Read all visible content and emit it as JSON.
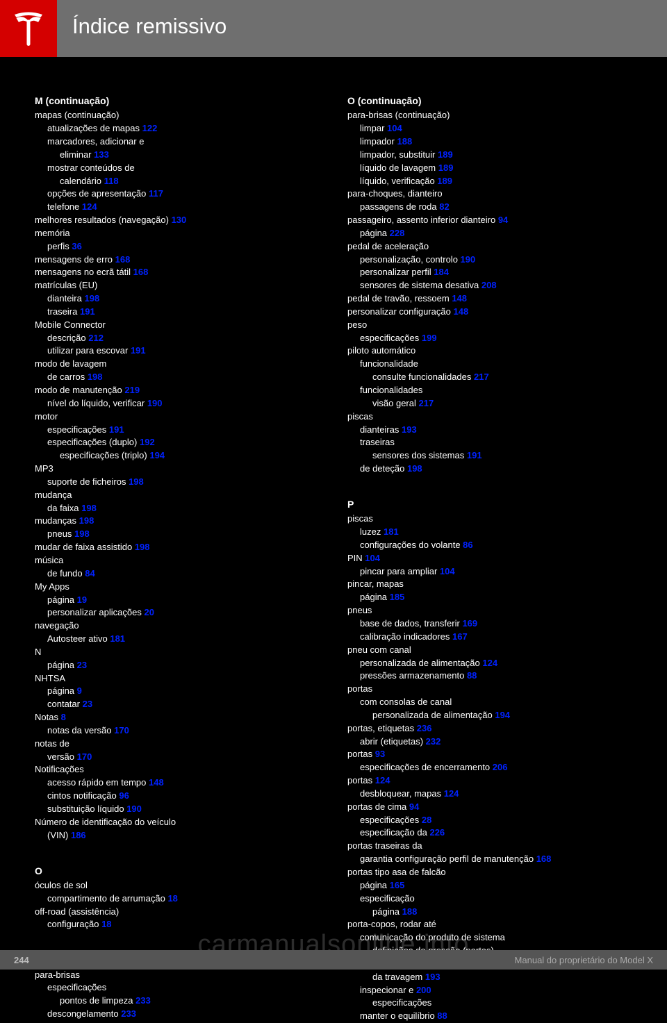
{
  "header": {
    "title": "Índice remissivo"
  },
  "footer": {
    "page": "244",
    "note": "Manual do proprietário do Model X"
  },
  "watermark": "carmanualsonline.info",
  "left": [
    {
      "cls": "sec-letter",
      "t": "M (continuação)"
    },
    {
      "cls": "entry",
      "t": "mapas (continuação)"
    },
    {
      "cls": "sub",
      "t": "atualizações de mapas",
      "p": "122"
    },
    {
      "cls": "sub",
      "t": "marcadores, adicionar e"
    },
    {
      "cls": "sub2",
      "t": "eliminar",
      "p": "133"
    },
    {
      "cls": "sub",
      "t": "mostrar conteúdos de"
    },
    {
      "cls": "sub2",
      "t": "calendário",
      "p": "118"
    },
    {
      "cls": "sub",
      "t": "opções de apresentação",
      "p": "117"
    },
    {
      "cls": "sub",
      "t": "telefone",
      "p": "124"
    },
    {
      "cls": "entry",
      "t": "melhores resultados (navegação)",
      "p": "130"
    },
    {
      "cls": "entry",
      "t": "memória"
    },
    {
      "cls": "sub",
      "t": "perfis",
      "p": "36"
    },
    {
      "cls": "entry",
      "t": "mensagens de erro",
      "p": "168"
    },
    {
      "cls": "entry",
      "t": "mensagens no ecrã tátil",
      "p": "168"
    },
    {
      "cls": "entry",
      "t": "matrículas (EU)"
    },
    {
      "cls": "sub",
      "t": "dianteira",
      "p": "198"
    },
    {
      "cls": "sub",
      "t": "traseira",
      "p": "191"
    },
    {
      "cls": "entry",
      "t": "Mobile Connector"
    },
    {
      "cls": "sub",
      "t": "descrição",
      "p": "212"
    },
    {
      "cls": "sub",
      "t": "utilizar para escovar",
      "p": "191"
    },
    {
      "cls": "entry",
      "t": "modo de lavagem"
    },
    {
      "cls": "sub",
      "t": "de carros",
      "p": "198"
    },
    {
      "cls": "entry",
      "t": "modo de manutenção",
      "p": "219"
    },
    {
      "cls": "sub",
      "t": "nível do líquido, verificar",
      "p": "190"
    },
    {
      "cls": "entry",
      "t": "motor"
    },
    {
      "cls": "sub",
      "t": "especificações",
      "p": "191"
    },
    {
      "cls": "sub",
      "t": "especificações (duplo)",
      "p": "192"
    },
    {
      "cls": "sub2",
      "t": "especificações (triplo)",
      "p": "194"
    },
    {
      "cls": "entry",
      "t": "MP3"
    },
    {
      "cls": "sub",
      "t": "suporte de ficheiros",
      "p": "198"
    },
    {
      "cls": "entry",
      "t": "mudança"
    },
    {
      "cls": "sub",
      "t": "da faixa",
      "p": "198"
    },
    {
      "cls": "entry",
      "t": "mudanças",
      "p": "198"
    },
    {
      "cls": "sub",
      "t": "pneus",
      "p": "198"
    },
    {
      "cls": "entry",
      "t": "mudar de faixa assistido",
      "p": "198"
    },
    {
      "cls": "entry",
      "t": "música"
    },
    {
      "cls": "sub",
      "t": "de fundo",
      "p": "84"
    },
    {
      "cls": "entry",
      "t": "My Apps"
    },
    {
      "cls": "sub",
      "t": "página",
      "p": "19"
    },
    {
      "cls": "sub",
      "t": "personalizar aplicações",
      "p": "20"
    },
    {
      "cls": "entry",
      "t": "navegação"
    },
    {
      "cls": "sub",
      "t": "Autosteer ativo",
      "p": "181"
    },
    {
      "cls": "entry",
      "t": "N"
    },
    {
      "cls": "sub",
      "t": "página",
      "p": "23"
    },
    {
      "cls": "entry",
      "t": "NHTSA"
    },
    {
      "cls": "sub",
      "t": "página",
      "p": "9"
    },
    {
      "cls": "sub",
      "t": "contatar",
      "p": "23"
    },
    {
      "cls": "entry",
      "t": "Notas",
      "p": "8"
    },
    {
      "cls": "sub",
      "t": "notas da versão",
      "p": "170"
    },
    {
      "cls": "entry",
      "t": "notas de"
    },
    {
      "cls": "sub",
      "t": "versão",
      "p": "170"
    },
    {
      "cls": "entry",
      "t": "Notificações"
    },
    {
      "cls": "sub",
      "t": "acesso rápido em tempo",
      "p": "148"
    },
    {
      "cls": "sub",
      "t": "cintos notificação",
      "p": "96"
    },
    {
      "cls": "sub",
      "t": "substituição líquido",
      "p": "190"
    },
    {
      "cls": "entry",
      "t": "Número de identificação do veículo"
    },
    {
      "cls": "sub",
      "t": "(VIN)",
      "p": "186"
    },
    {
      "cls": "blank",
      "t": ""
    },
    {
      "cls": "sec-letter",
      "t": "O"
    },
    {
      "cls": "entry",
      "t": "óculos de sol"
    },
    {
      "cls": "sub",
      "t": "compartimento de arrumação",
      "p": "18"
    },
    {
      "cls": "entry",
      "t": "off-road (assistência)"
    },
    {
      "cls": "sub",
      "t": "configuração",
      "p": "18"
    },
    {
      "cls": "blank",
      "t": ""
    },
    {
      "cls": "sec-letter",
      "t": "P"
    },
    {
      "cls": "entry",
      "t": "para-brisas"
    },
    {
      "cls": "sub",
      "t": "especificações"
    },
    {
      "cls": "sub2",
      "t": "pontos de limpeza",
      "p": "233"
    },
    {
      "cls": "sub",
      "t": "descongelamento",
      "p": "233"
    }
  ],
  "right": [
    {
      "cls": "sec-letter",
      "t": "O (continuação)"
    },
    {
      "cls": "entry",
      "t": "para-brisas (continuação)"
    },
    {
      "cls": "sub",
      "t": "limpar",
      "p": "104"
    },
    {
      "cls": "sub",
      "t": "limpador",
      "p": "188"
    },
    {
      "cls": "sub",
      "t": "limpador, substituir",
      "p": "189"
    },
    {
      "cls": "sub",
      "t": "líquido de lavagem",
      "p": "189"
    },
    {
      "cls": "sub",
      "t": "líquido, verificação",
      "p": "189"
    },
    {
      "cls": "entry",
      "t": "para-choques, dianteiro"
    },
    {
      "cls": "sub",
      "t": "passagens de roda",
      "p": "82"
    },
    {
      "cls": "entry",
      "t": "passageiro, assento inferior dianteiro",
      "p": "94"
    },
    {
      "cls": "sub",
      "t": "página",
      "p": "228"
    },
    {
      "cls": "entry",
      "t": "pedal de aceleração"
    },
    {
      "cls": "sub",
      "t": "personalização, controlo",
      "p": "190"
    },
    {
      "cls": "sub",
      "t": "personalizar perfil",
      "p": "184"
    },
    {
      "cls": "sub",
      "t": "sensores de sistema desativa",
      "p": "208"
    },
    {
      "cls": "entry",
      "t": "pedal de travão, ressoem",
      "p": "148"
    },
    {
      "cls": "entry",
      "t": "personalizar configuração",
      "p": "148"
    },
    {
      "cls": "entry",
      "t": "peso"
    },
    {
      "cls": "sub",
      "t": "especificações",
      "p": "199"
    },
    {
      "cls": "entry",
      "t": "piloto automático"
    },
    {
      "cls": "sub",
      "t": "funcionalidade"
    },
    {
      "cls": "sub2",
      "t": "consulte funcionalidades",
      "p": "217"
    },
    {
      "cls": "sub",
      "t": "funcionalidades"
    },
    {
      "cls": "sub2",
      "t": "visão geral",
      "p": "217"
    },
    {
      "cls": "entry",
      "t": "piscas"
    },
    {
      "cls": "sub",
      "t": "dianteiras",
      "p": "193"
    },
    {
      "cls": "sub",
      "t": "traseiras"
    },
    {
      "cls": "sub2",
      "t": "sensores dos sistemas",
      "p": "191"
    },
    {
      "cls": "sub",
      "t": "de deteção",
      "p": "198"
    },
    {
      "cls": "blank",
      "t": ""
    },
    {
      "cls": "sec-letter",
      "t": "P"
    },
    {
      "cls": "entry",
      "t": "piscas"
    },
    {
      "cls": "sub",
      "t": "luzez",
      "p": "181"
    },
    {
      "cls": "sub",
      "t": "configurações do volante",
      "p": "86"
    },
    {
      "cls": "entry",
      "t": "PIN",
      "p": "104"
    },
    {
      "cls": "sub",
      "t": "pincar para ampliar",
      "p": "104"
    },
    {
      "cls": "entry",
      "t": "pincar, mapas"
    },
    {
      "cls": "sub",
      "t": "página",
      "p": "185"
    },
    {
      "cls": "entry",
      "t": "pneus"
    },
    {
      "cls": "sub",
      "t": "base de dados, transferir",
      "p": "169"
    },
    {
      "cls": "sub",
      "t": "calibração indicadores",
      "p": "167"
    },
    {
      "cls": "entry",
      "t": "pneu com canal"
    },
    {
      "cls": "sub",
      "t": "personalizada de alimentação",
      "p": "124"
    },
    {
      "cls": "sub",
      "t": "pressões armazenamento",
      "p": "88"
    },
    {
      "cls": "entry",
      "t": "portas"
    },
    {
      "cls": "sub",
      "t": "com consolas de canal"
    },
    {
      "cls": "sub2",
      "t": "personalizada de alimentação",
      "p": "194"
    },
    {
      "cls": "entry",
      "t": "portas, etiquetas",
      "p": "236"
    },
    {
      "cls": "sub",
      "t": "abrir (etiquetas)",
      "p": "232"
    },
    {
      "cls": "entry",
      "t": "portas",
      "p": "93"
    },
    {
      "cls": "sub",
      "t": "especificações de encerramento",
      "p": "206"
    },
    {
      "cls": "entry",
      "t": "portas",
      "p": "124"
    },
    {
      "cls": "sub",
      "t": "desbloquear, mapas",
      "p": "124"
    },
    {
      "cls": "entry",
      "t": "portas de cima",
      "p": "94"
    },
    {
      "cls": "sub",
      "t": "especificações",
      "p": "28"
    },
    {
      "cls": "sub",
      "t": "especificação da",
      "p": "226"
    },
    {
      "cls": "entry",
      "t": "portas traseiras da"
    },
    {
      "cls": "sub",
      "t": "garantia configuração perfil de manutenção",
      "p": "168"
    },
    {
      "cls": "entry",
      "t": "portas tipo asa de falcão"
    },
    {
      "cls": "sub",
      "t": "página",
      "p": "165"
    },
    {
      "cls": "sub",
      "t": "especificação"
    },
    {
      "cls": "sub2",
      "t": "página",
      "p": "188"
    },
    {
      "cls": "entry",
      "t": "porta-copos, rodar até"
    },
    {
      "cls": "sub",
      "t": "comunicação do produto de sistema"
    },
    {
      "cls": "sub2",
      "t": "definições de pressão (portas)"
    },
    {
      "cls": "sub",
      "t": "especificação de rotulação"
    },
    {
      "cls": "sub2",
      "t": "da travagem",
      "p": "193"
    },
    {
      "cls": "sub",
      "t": "inspecionar e",
      "p": "200"
    },
    {
      "cls": "sub2",
      "t": "especificações"
    },
    {
      "cls": "sub",
      "t": "manter o equilíbrio",
      "p": "88"
    }
  ]
}
